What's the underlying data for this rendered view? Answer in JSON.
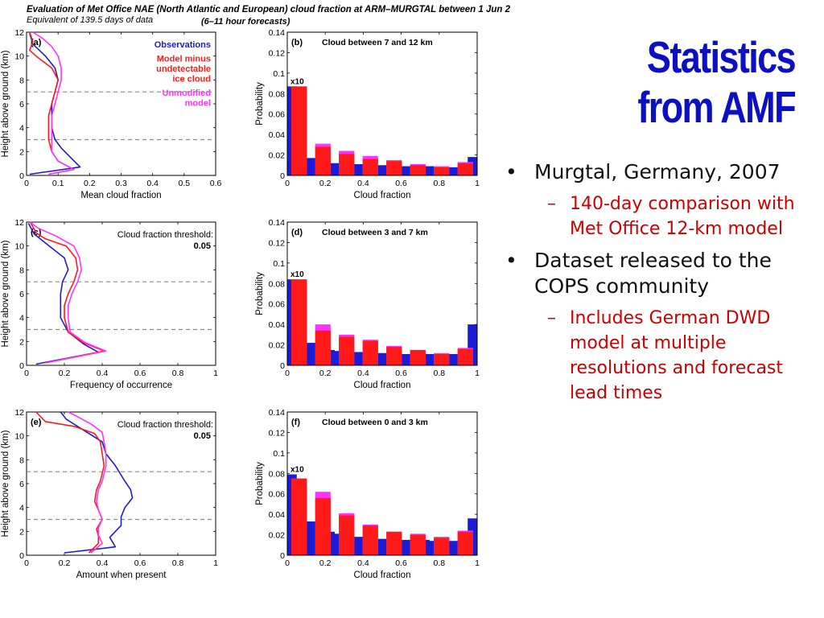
{
  "slide": {
    "title_line1": "Statistics",
    "title_line2": "from AMF",
    "bullets": [
      {
        "text": "Murgtal, Germany, 2007",
        "sub": "140-day comparison with Met Office 12-km model"
      },
      {
        "text": "Dataset released to the COPS community",
        "sub": "Includes German DWD model at multiple resolutions and forecast lead times"
      }
    ]
  },
  "figure": {
    "title_line1": "Evaluation of Met Office NAE (North Atlantic and European) cloud fraction at ARM–MURGTAL between 1 Jun 2",
    "title_line2_left": "Equivalent of 139.5 days of data",
    "title_line2_right": "(6–11 hour forecasts)"
  },
  "colors": {
    "title": "#0b10c4",
    "observations": "#1c1cd6",
    "model_minus": "#ff1a1a",
    "unmodified": "#ff33ff",
    "bullet_sub": "#cc0000"
  },
  "chart_data": [
    {
      "type": "line",
      "panel": "(a)",
      "xlabel": "Mean cloud fraction",
      "ylabel": "Height above ground (km)",
      "xlim": [
        0,
        0.6
      ],
      "ylim": [
        0,
        12
      ],
      "xticks": [
        "0",
        "0.1",
        "0.2",
        "0.3",
        "0.4",
        "0.5",
        "0.6"
      ],
      "yticks": [
        "0",
        "2",
        "4",
        "6",
        "8",
        "10",
        "12"
      ],
      "hlines": [
        3,
        7
      ],
      "legend": [
        "Observations",
        "Model minus undetectable ice cloud",
        "Unmodified model"
      ],
      "series": [
        {
          "name": "Observations",
          "color": "#1c1cd6",
          "points": [
            [
              0.01,
              0.1
            ],
            [
              0.17,
              0.7
            ],
            [
              0.14,
              1.5
            ],
            [
              0.11,
              2.3
            ],
            [
              0.09,
              3
            ],
            [
              0.08,
              4
            ],
            [
              0.08,
              5
            ],
            [
              0.08,
              6
            ],
            [
              0.09,
              7
            ],
            [
              0.1,
              8
            ],
            [
              0.09,
              9
            ],
            [
              0.06,
              10
            ],
            [
              0.02,
              11
            ],
            [
              0.01,
              11.9
            ]
          ]
        },
        {
          "name": "Model minus undetectable ice cloud",
          "color": "#ff1a1a",
          "points": [
            [
              0.07,
              0.1
            ],
            [
              0.15,
              0.5
            ],
            [
              0.1,
              1.2
            ],
            [
              0.08,
              2
            ],
            [
              0.07,
              3
            ],
            [
              0.07,
              4
            ],
            [
              0.07,
              5
            ],
            [
              0.08,
              6
            ],
            [
              0.09,
              7
            ],
            [
              0.1,
              8
            ],
            [
              0.08,
              9
            ],
            [
              0.03,
              10
            ],
            [
              0.01,
              10.5
            ],
            [
              0.02,
              11.2
            ],
            [
              0.01,
              12
            ]
          ]
        },
        {
          "name": "Unmodified model",
          "color": "#ff33ff",
          "points": [
            [
              0.07,
              0.1
            ],
            [
              0.15,
              0.5
            ],
            [
              0.1,
              1.2
            ],
            [
              0.08,
              2
            ],
            [
              0.08,
              3
            ],
            [
              0.08,
              4
            ],
            [
              0.08,
              5
            ],
            [
              0.09,
              6
            ],
            [
              0.1,
              7
            ],
            [
              0.11,
              8
            ],
            [
              0.11,
              9
            ],
            [
              0.1,
              10
            ],
            [
              0.08,
              10.8
            ],
            [
              0.05,
              11.5
            ],
            [
              0.02,
              12
            ]
          ]
        }
      ]
    },
    {
      "type": "bar",
      "panel": "(b)",
      "subtitle": "Cloud between 7 and 12 km",
      "xlabel": "Cloud fraction",
      "ylabel": "Probability",
      "xlim": [
        0,
        1
      ],
      "ylim": [
        0,
        0.14
      ],
      "xticks": [
        "0",
        "0.2",
        "0.4",
        "0.6",
        "0.8",
        "1"
      ],
      "yticks": [
        "0",
        "0.02",
        "0.04",
        "0.06",
        "0.08",
        "0.1",
        "0.12",
        "0.14"
      ],
      "first_bin_label": "x10",
      "series": [
        {
          "name": "Observations",
          "color": "#1c1cd6",
          "values": [
            0.087,
            0.021,
            0.017,
            0.014,
            0.012,
            0.012,
            0.011,
            0.011,
            0.01,
            0.01,
            0.01,
            0.01,
            0.009,
            0.009,
            0.009,
            0.009,
            0.008,
            0.008,
            0.008,
            0.018
          ]
        },
        {
          "name": "Unmodified model",
          "color": "#ff33ff",
          "values": [
            0.087,
            0.031,
            0.024,
            0.019,
            0.015,
            0.011,
            0.009,
            0.013
          ]
        },
        {
          "name": "Model minus undetectable ice cloud",
          "color": "#ff1a1a",
          "values": [
            0.087,
            0.028,
            0.021,
            0.016,
            0.014,
            0.01,
            0.008,
            0.012
          ]
        }
      ]
    },
    {
      "type": "line",
      "panel": "(c)",
      "annotation_line1": "Cloud fraction threshold:",
      "annotation_line2": "0.05",
      "xlabel": "Frequency of occurrence",
      "ylabel": "Height above ground (km)",
      "xlim": [
        0,
        1
      ],
      "ylim": [
        0,
        12
      ],
      "xticks": [
        "0",
        "0.2",
        "0.4",
        "0.6",
        "0.8",
        "1"
      ],
      "yticks": [
        "0",
        "2",
        "4",
        "6",
        "8",
        "10",
        "12"
      ],
      "hlines": [
        3,
        7
      ],
      "series": [
        {
          "name": "Observations",
          "color": "#1c1cd6",
          "points": [
            [
              0.05,
              0.1
            ],
            [
              0.38,
              1.1
            ],
            [
              0.3,
              1.8
            ],
            [
              0.22,
              2.8
            ],
            [
              0.18,
              4
            ],
            [
              0.18,
              5
            ],
            [
              0.18,
              6
            ],
            [
              0.19,
              7
            ],
            [
              0.22,
              8
            ],
            [
              0.2,
              9
            ],
            [
              0.12,
              10
            ],
            [
              0.04,
              11
            ],
            [
              0.01,
              11.9
            ]
          ]
        },
        {
          "name": "Model minus undetectable ice cloud",
          "color": "#ff1a1a",
          "points": [
            [
              0.1,
              0.2
            ],
            [
              0.41,
              1.2
            ],
            [
              0.3,
              1.9
            ],
            [
              0.22,
              2.8
            ],
            [
              0.2,
              4
            ],
            [
              0.2,
              5
            ],
            [
              0.22,
              6
            ],
            [
              0.25,
              7
            ],
            [
              0.27,
              8
            ],
            [
              0.26,
              9
            ],
            [
              0.21,
              10
            ],
            [
              0.1,
              10.6
            ],
            [
              0.05,
              11.1
            ],
            [
              0.02,
              12
            ]
          ]
        },
        {
          "name": "Unmodified model",
          "color": "#ff33ff",
          "points": [
            [
              0.1,
              0.2
            ],
            [
              0.42,
              1.2
            ],
            [
              0.31,
              1.9
            ],
            [
              0.23,
              2.8
            ],
            [
              0.22,
              4
            ],
            [
              0.22,
              5
            ],
            [
              0.24,
              6
            ],
            [
              0.27,
              7
            ],
            [
              0.29,
              8
            ],
            [
              0.28,
              9
            ],
            [
              0.25,
              10
            ],
            [
              0.16,
              10.8
            ],
            [
              0.06,
              11.5
            ],
            [
              0.02,
              12
            ]
          ]
        }
      ]
    },
    {
      "type": "bar",
      "panel": "(d)",
      "subtitle": "Cloud between 3 and 7 km",
      "xlabel": "Cloud fraction",
      "ylabel": "Probability",
      "xlim": [
        0,
        1
      ],
      "ylim": [
        0,
        0.14
      ],
      "xticks": [
        "0",
        "0.2",
        "0.4",
        "0.6",
        "0.8",
        "1"
      ],
      "yticks": [
        "0",
        "0.02",
        "0.04",
        "0.06",
        "0.08",
        "0.1",
        "0.12",
        "0.14"
      ],
      "first_bin_label": "x10",
      "series": [
        {
          "name": "Observations",
          "color": "#1c1cd6",
          "values": [
            0.084,
            0.028,
            0.022,
            0.017,
            0.015,
            0.014,
            0.013,
            0.013,
            0.012,
            0.012,
            0.012,
            0.011,
            0.011,
            0.011,
            0.011,
            0.011,
            0.011,
            0.011,
            0.011,
            0.04
          ]
        },
        {
          "name": "Unmodified model",
          "color": "#ff33ff",
          "values": [
            0.084,
            0.04,
            0.03,
            0.025,
            0.019,
            0.015,
            0.012,
            0.017
          ]
        },
        {
          "name": "Model minus undetectable ice cloud",
          "color": "#ff1a1a",
          "values": [
            0.084,
            0.034,
            0.028,
            0.024,
            0.018,
            0.015,
            0.011,
            0.016
          ]
        }
      ]
    },
    {
      "type": "line",
      "panel": "(e)",
      "annotation_line1": "Cloud fraction threshold:",
      "annotation_line2": "0.05",
      "xlabel": "Amount when present",
      "ylabel": "Height above ground (km)",
      "xlim": [
        0,
        1
      ],
      "ylim": [
        0,
        12
      ],
      "xticks": [
        "0",
        "0.2",
        "0.4",
        "0.6",
        "0.8",
        "1"
      ],
      "yticks": [
        "0",
        "2",
        "4",
        "6",
        "8",
        "10",
        "12"
      ],
      "hlines": [
        3,
        7
      ],
      "series": [
        {
          "name": "Observations",
          "color": "#1c1cd6",
          "points": [
            [
              0.2,
              0.2
            ],
            [
              0.47,
              0.7
            ],
            [
              0.44,
              1.5
            ],
            [
              0.5,
              2.5
            ],
            [
              0.5,
              3.2
            ],
            [
              0.52,
              4
            ],
            [
              0.56,
              4.8
            ],
            [
              0.55,
              5.5
            ],
            [
              0.52,
              6.2
            ],
            [
              0.47,
              7.5
            ],
            [
              0.42,
              8.5
            ],
            [
              0.4,
              9.5
            ],
            [
              0.3,
              10.5
            ],
            [
              0.21,
              11.4
            ],
            [
              0.18,
              12
            ]
          ]
        },
        {
          "name": "Model minus undetectable ice cloud",
          "color": "#ff1a1a",
          "points": [
            [
              0.33,
              0.2
            ],
            [
              0.38,
              1
            ],
            [
              0.38,
              1.6
            ],
            [
              0.37,
              2.2
            ],
            [
              0.4,
              3
            ],
            [
              0.38,
              3.8
            ],
            [
              0.36,
              4.5
            ],
            [
              0.37,
              5.5
            ],
            [
              0.39,
              6.2
            ],
            [
              0.41,
              7.5
            ],
            [
              0.4,
              8.5
            ],
            [
              0.39,
              9.5
            ],
            [
              0.36,
              10.2
            ],
            [
              0.25,
              10.8
            ],
            [
              0.1,
              11.2
            ],
            [
              0.05,
              12
            ]
          ]
        },
        {
          "name": "Unmodified model",
          "color": "#ff33ff",
          "points": [
            [
              0.34,
              0.2
            ],
            [
              0.4,
              1
            ],
            [
              0.38,
              1.7
            ],
            [
              0.38,
              2.3
            ],
            [
              0.4,
              3
            ],
            [
              0.38,
              3.8
            ],
            [
              0.37,
              4.5
            ],
            [
              0.38,
              5.5
            ],
            [
              0.4,
              6.2
            ],
            [
              0.42,
              7.5
            ],
            [
              0.42,
              8.5
            ],
            [
              0.41,
              9.5
            ],
            [
              0.4,
              10.3
            ],
            [
              0.34,
              11
            ],
            [
              0.27,
              11.6
            ],
            [
              0.22,
              12
            ]
          ]
        }
      ]
    },
    {
      "type": "bar",
      "panel": "(f)",
      "subtitle": "Cloud between 0 and 3 km",
      "xlabel": "Cloud fraction",
      "ylabel": "Probability",
      "xlim": [
        0,
        1
      ],
      "ylim": [
        0,
        0.14
      ],
      "xticks": [
        "0",
        "0.2",
        "0.4",
        "0.6",
        "0.8",
        "1"
      ],
      "yticks": [
        "0",
        "0.02",
        "0.04",
        "0.06",
        "0.08",
        "0.1",
        "0.12",
        "0.14"
      ],
      "first_bin_label": "x10",
      "series": [
        {
          "name": "Observations",
          "color": "#1c1cd6",
          "values": [
            0.079,
            0.041,
            0.033,
            0.027,
            0.023,
            0.021,
            0.019,
            0.018,
            0.017,
            0.016,
            0.016,
            0.015,
            0.015,
            0.015,
            0.015,
            0.014,
            0.014,
            0.014,
            0.014,
            0.036
          ]
        },
        {
          "name": "Unmodified model",
          "color": "#ff33ff",
          "values": [
            0.075,
            0.062,
            0.041,
            0.03,
            0.023,
            0.021,
            0.018,
            0.024
          ]
        },
        {
          "name": "Model minus undetectable ice cloud",
          "color": "#ff1a1a",
          "values": [
            0.075,
            0.056,
            0.039,
            0.029,
            0.023,
            0.02,
            0.017,
            0.023
          ]
        }
      ]
    }
  ]
}
